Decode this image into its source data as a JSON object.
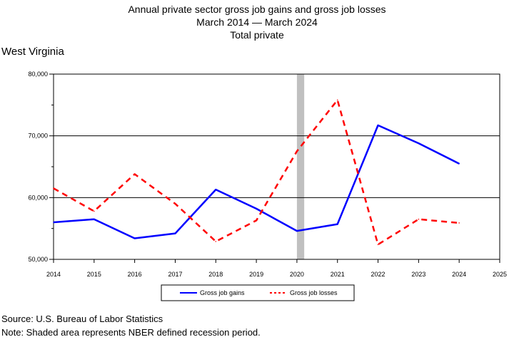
{
  "title": {
    "line1": "Annual private sector gross job gains and gross job losses",
    "line2": "March 2014 — March 2024",
    "line3": "Total private"
  },
  "region": "West Virginia",
  "footer": {
    "source": "Source: U.S. Bureau of Labor Statistics",
    "note": "Note: Shaded area represents NBER defined recession period."
  },
  "chart_data": {
    "type": "line",
    "x_ticks": [
      "2014",
      "2015",
      "2016",
      "2017",
      "2018",
      "2019",
      "2020",
      "2021",
      "2022",
      "2023",
      "2024",
      "2025"
    ],
    "y_ticks": [
      "50,000",
      "60,000",
      "70,000",
      "80,000"
    ],
    "xlim": [
      2014,
      2025
    ],
    "ylim": [
      50000,
      80000
    ],
    "grid": true,
    "legend_position": "bottom-center",
    "recession": {
      "start": 2020,
      "end": 2020.18,
      "color": "#c0c0c0"
    },
    "series": [
      {
        "name": "Gross job gains",
        "color": "#0000ff",
        "style": "solid",
        "x": [
          2014,
          2015,
          2016,
          2017,
          2018,
          2019,
          2020,
          2021,
          2022,
          2023,
          2024
        ],
        "values": [
          56000,
          56500,
          53400,
          54200,
          61300,
          58200,
          54600,
          55700,
          71700,
          68800,
          65500
        ]
      },
      {
        "name": "Gross job losses",
        "color": "#ff0000",
        "style": "dashed",
        "x": [
          2014,
          2015,
          2016,
          2017,
          2018,
          2019,
          2020,
          2021,
          2022,
          2023,
          2024
        ],
        "values": [
          61500,
          57800,
          63800,
          59000,
          52900,
          56300,
          67500,
          75800,
          52400,
          56500,
          55900
        ]
      }
    ]
  }
}
